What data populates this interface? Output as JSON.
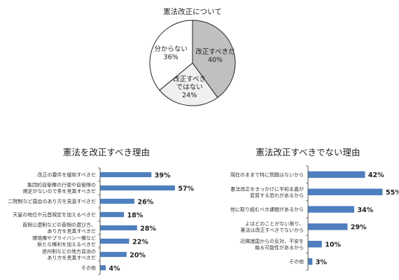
{
  "chart_data": [
    {
      "type": "pie",
      "title": "憲法改正について",
      "slices": [
        {
          "label_lines": [
            "改正すべきだ"
          ],
          "value": 40,
          "value_text": "40%",
          "color": "#c0c0c0"
        },
        {
          "label_lines": [
            "改正すべき",
            "ではない"
          ],
          "value": 24,
          "value_text": "24%",
          "color": "#f0f0f0"
        },
        {
          "label_lines": [
            "分からない"
          ],
          "value": 36,
          "value_text": "36%",
          "color": "#ffffff"
        }
      ]
    },
    {
      "type": "bar",
      "orientation": "horizontal",
      "title": "憲法を改正すべき理由",
      "xlim": [
        0,
        60
      ],
      "bar_color": "#4f7fbf",
      "categories": [
        [
          "改正の要件を緩和すべきだ"
        ],
        [
          "集団的自衛権の行使や自衛隊の",
          "規定がないので条を見直すべきだ"
        ],
        [
          "二院制など国会のあり方を見直すべきだ"
        ],
        [
          "天皇の地位や元首規定を加えるべきだ"
        ],
        [
          "首相公選制などの首相の選び方、",
          "あり方を見直すべきだ"
        ],
        [
          "環境権やプライバシー権など",
          "新たな権利を加えるべきだ"
        ],
        [
          "道州制などの地方自治の",
          "あり方を見直すべきだ"
        ],
        [
          "その他"
        ]
      ],
      "values": [
        39,
        57,
        26,
        18,
        28,
        22,
        20,
        4
      ],
      "value_labels": [
        "39%",
        "57%",
        "26%",
        "18%",
        "28%",
        "22%",
        "20%",
        "4%"
      ]
    },
    {
      "type": "bar",
      "orientation": "horizontal",
      "title": "憲法改正すべきでない理由",
      "xlim": [
        0,
        55
      ],
      "bar_color": "#4f7fbf",
      "categories": [
        [
          "現在のままで特に問題はないから"
        ],
        [
          "憲法改正をきっかけに平和主義が",
          "変質する恐れがあるから"
        ],
        [
          "他に取り組むべき課題があるから"
        ],
        [
          "よほどのことがない限り、",
          "憲法は改正すべきでないから"
        ],
        [
          "近隣諸国からの反対、不安を",
          "煽る可能性があるから"
        ],
        [
          "その他"
        ]
      ],
      "values": [
        42,
        55,
        34,
        29,
        10,
        3
      ],
      "value_labels": [
        "42%",
        "55%",
        "34%",
        "29%",
        "10%",
        "3%"
      ]
    }
  ]
}
